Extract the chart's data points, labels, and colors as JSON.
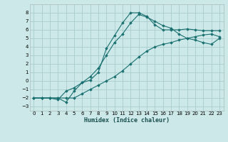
{
  "title": "",
  "xlabel": "Humidex (Indice chaleur)",
  "background_color": "#cce8e8",
  "grid_color": "#aacccc",
  "line_color": "#1a7070",
  "xlim": [
    -0.5,
    23.5
  ],
  "ylim": [
    -3.5,
    9.0
  ],
  "xticks": [
    0,
    1,
    2,
    3,
    4,
    5,
    6,
    7,
    8,
    9,
    10,
    11,
    12,
    13,
    14,
    15,
    16,
    17,
    18,
    19,
    20,
    21,
    22,
    23
  ],
  "yticks": [
    -3,
    -2,
    -1,
    0,
    1,
    2,
    3,
    4,
    5,
    6,
    7,
    8
  ],
  "line1_x": [
    0,
    1,
    2,
    3,
    4,
    5,
    6,
    7,
    8,
    9,
    10,
    11,
    12,
    13,
    14,
    15,
    16,
    17,
    18,
    19,
    20,
    21,
    22,
    23
  ],
  "line1_y": [
    -2.0,
    -2.0,
    -2.0,
    -2.0,
    -2.5,
    -1.2,
    -0.2,
    0.1,
    1.0,
    3.8,
    5.3,
    6.8,
    8.0,
    8.0,
    7.6,
    6.6,
    6.0,
    6.0,
    6.0,
    6.1,
    6.0,
    5.9,
    5.9,
    5.9
  ],
  "line2_x": [
    0,
    1,
    2,
    3,
    4,
    5,
    6,
    7,
    8,
    9,
    10,
    11,
    12,
    13,
    14,
    15,
    16,
    17,
    18,
    19,
    20,
    21,
    22,
    23
  ],
  "line2_y": [
    -2.0,
    -2.0,
    -2.0,
    -2.2,
    -1.2,
    -0.8,
    -0.2,
    0.5,
    1.5,
    3.0,
    4.5,
    5.5,
    6.8,
    7.8,
    7.5,
    7.0,
    6.5,
    6.2,
    5.5,
    5.0,
    4.8,
    4.5,
    4.3,
    5.0
  ],
  "line3_x": [
    0,
    1,
    2,
    3,
    4,
    5,
    6,
    7,
    8,
    9,
    10,
    11,
    12,
    13,
    14,
    15,
    16,
    17,
    18,
    19,
    20,
    21,
    22,
    23
  ],
  "line3_y": [
    -2.0,
    -2.0,
    -2.0,
    -2.0,
    -2.0,
    -2.0,
    -1.5,
    -1.0,
    -0.5,
    0.0,
    0.5,
    1.2,
    2.0,
    2.8,
    3.5,
    4.0,
    4.3,
    4.5,
    4.8,
    5.0,
    5.2,
    5.4,
    5.5,
    5.2
  ]
}
